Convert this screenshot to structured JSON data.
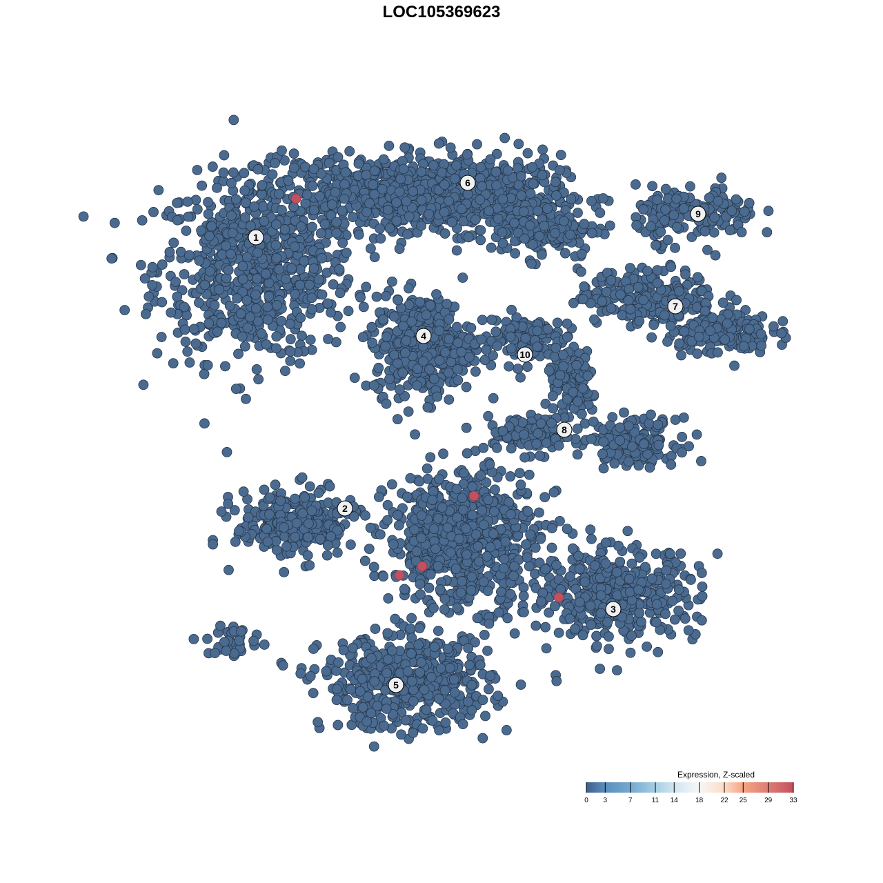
{
  "chart_data": {
    "type": "scatter",
    "title": "LOC105369623",
    "xlabel": "",
    "ylabel": "",
    "xlim": [
      -45,
      50
    ],
    "ylim": [
      -45,
      47
    ],
    "grid": false,
    "axes_visible": false,
    "point_fill_low": "#4a6a8f",
    "point_stroke": "#26364a",
    "baseline_value": 0,
    "highlighted_points": [
      {
        "x": -21.1,
        "y": 35.2,
        "value": 33
      },
      {
        "x": 4.7,
        "y": -7.9,
        "value": 33
      },
      {
        "x": -6.1,
        "y": -19.4,
        "value": 33
      },
      {
        "x": -2.8,
        "y": -18.1,
        "value": 33
      },
      {
        "x": 17.0,
        "y": -22.6,
        "value": 33
      }
    ],
    "cluster_labels": [
      {
        "label": "1",
        "x": -26.9,
        "y": 29.6
      },
      {
        "label": "2",
        "x": -14.0,
        "y": -9.7
      },
      {
        "label": "3",
        "x": 24.9,
        "y": -24.3
      },
      {
        "label": "4",
        "x": -2.6,
        "y": 15.3
      },
      {
        "label": "5",
        "x": -6.6,
        "y": -35.3
      },
      {
        "label": "6",
        "x": 3.8,
        "y": 37.5
      },
      {
        "label": "7",
        "x": 33.9,
        "y": 19.6
      },
      {
        "label": "8",
        "x": 17.8,
        "y": 1.7
      },
      {
        "label": "9",
        "x": 37.2,
        "y": 33.0
      },
      {
        "label": "10",
        "x": 12.1,
        "y": 12.6
      }
    ],
    "legend": {
      "title": "Expression, Z-scaled",
      "placement": "bottom-right",
      "ticks": [
        "0",
        "3",
        "7",
        "11",
        "14",
        "18",
        "22",
        "25",
        "29",
        "33"
      ],
      "range": [
        0,
        33
      ],
      "colors": [
        "#3f5f8c",
        "#5b8ebf",
        "#74a9cf",
        "#a6cfe3",
        "#d1e5f0",
        "#f7f7f7",
        "#fddbc7",
        "#f4a582",
        "#de7c74",
        "#c2505f"
      ]
    }
  }
}
